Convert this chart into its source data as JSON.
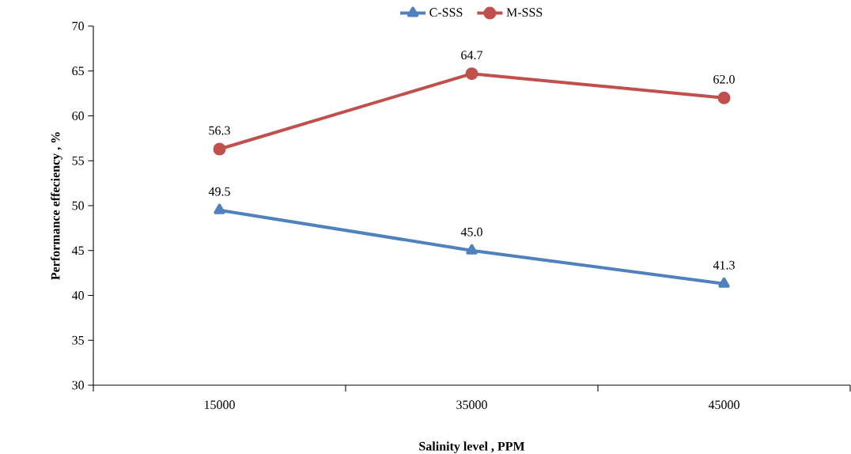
{
  "chart_data": {
    "type": "line",
    "xlabel": "Salinity level , PPM",
    "ylabel": "Performance effeciency , %",
    "categories": [
      "15000",
      "35000",
      "45000"
    ],
    "series": [
      {
        "name": "C-SSS",
        "color": "#4f81bd",
        "marker": "triangle",
        "values": [
          49.5,
          45.0,
          41.3
        ],
        "value_labels": [
          "49.5",
          "45.0",
          "41.3"
        ]
      },
      {
        "name": "M-SSS",
        "color": "#c0504d",
        "marker": "circle",
        "values": [
          56.3,
          64.7,
          62.0
        ],
        "value_labels": [
          "56.3",
          "64.7",
          "62.0"
        ]
      }
    ],
    "ylim": [
      30,
      70
    ],
    "yticks": [
      30,
      35,
      40,
      45,
      50,
      55,
      60,
      65,
      70
    ],
    "legend": "top",
    "grid": false,
    "line_style": "solid"
  }
}
